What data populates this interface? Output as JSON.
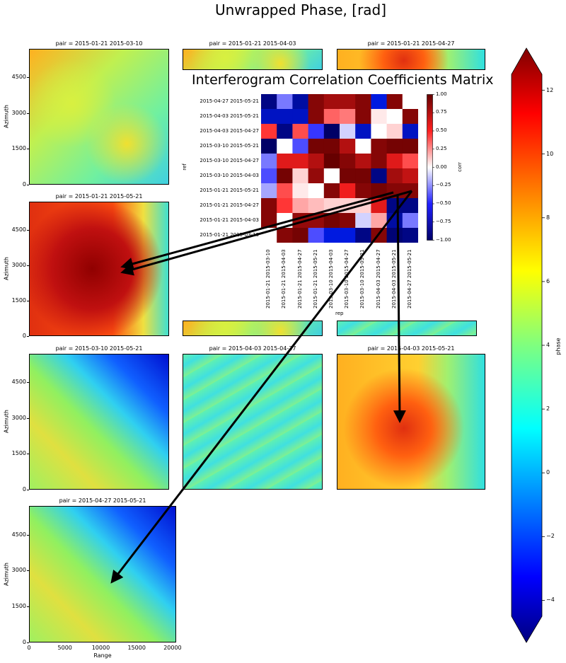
{
  "figure": {
    "title": "Unwrapped Phase, [rad]",
    "panels": [
      {
        "title": "pair = 2015-01-21 2015-03-10",
        "style": "green"
      },
      {
        "title": "pair = 2015-01-21 2015-04-03",
        "style": "green"
      },
      {
        "title": "pair = 2015-01-21 2015-04-27",
        "style": "orange"
      },
      {
        "title": "pair = 2015-01-21 2015-05-21",
        "style": "red"
      },
      {
        "title": "",
        "style": "green"
      },
      {
        "title": "",
        "style": "cyan"
      },
      {
        "title": "pair = 2015-03-10 2015-05-21",
        "style": "bluegreen"
      },
      {
        "title": "pair = 2015-04-03 2015-04-27",
        "style": "cyan"
      },
      {
        "title": "pair = 2015-04-03 2015-05-21",
        "style": "orange"
      },
      {
        "title": "pair = 2015-04-27 2015-05-21",
        "style": "bluegreen"
      }
    ],
    "y_label": "Azimuth",
    "x_label": "Range",
    "y_ticks": [
      "0",
      "1500",
      "3000",
      "4500"
    ],
    "x_ticks": [
      "0",
      "5000",
      "10000",
      "15000",
      "20000"
    ]
  },
  "colorbar": {
    "label": "phase",
    "ticks": [
      "12",
      "10",
      "8",
      "6",
      "4",
      "2",
      "0",
      "−2",
      "−4"
    ]
  },
  "matrix": {
    "title": "Interferogram Correlation Coefficients Matrix",
    "ylabel": "ref",
    "xlabel": "rep",
    "cbar_label": "corr",
    "cbar_ticks": [
      "1.00",
      "0.75",
      "0.50",
      "0.25",
      "0.00",
      "−0.25",
      "−0.50",
      "−0.75",
      "−1.00"
    ],
    "row_labels": [
      "2015-04-27 2015-05-21",
      "2015-04-03 2015-05-21",
      "2015-04-03 2015-04-27",
      "2015-03-10 2015-05-21",
      "2015-03-10 2015-04-27",
      "2015-03-10 2015-04-03",
      "2015-01-21 2015-05-21",
      "2015-01-21 2015-04-27",
      "2015-01-21 2015-04-03",
      "2015-01-21 2015-03-10"
    ],
    "col_labels": [
      "2015-01-21 2015-03-10",
      "2015-01-21 2015-04-03",
      "2015-01-21 2015-04-27",
      "2015-01-21 2015-05-21",
      "2015-03-10 2015-04-03",
      "2015-03-10 2015-04-27",
      "2015-03-10 2015-05-21",
      "2015-04-03 2015-04-27",
      "2015-04-03 2015-05-21",
      "2015-04-27 2015-05-21"
    ]
  },
  "chart_data": {
    "type": "heatmap",
    "title": "Interferogram Correlation Coefficients Matrix",
    "xlabel": "rep",
    "ylabel": "ref",
    "vmin": -1,
    "vmax": 1,
    "rows": [
      "2015-04-27 2015-05-21",
      "2015-04-03 2015-05-21",
      "2015-04-03 2015-04-27",
      "2015-03-10 2015-05-21",
      "2015-03-10 2015-04-27",
      "2015-03-10 2015-04-03",
      "2015-01-21 2015-05-21",
      "2015-01-21 2015-04-27",
      "2015-01-21 2015-04-03",
      "2015-01-21 2015-03-10"
    ],
    "cols": [
      "2015-01-21 2015-03-10",
      "2015-01-21 2015-04-03",
      "2015-01-21 2015-04-27",
      "2015-01-21 2015-05-21",
      "2015-03-10 2015-04-03",
      "2015-03-10 2015-04-27",
      "2015-03-10 2015-05-21",
      "2015-04-03 2015-04-27",
      "2015-04-03 2015-05-21",
      "2015-04-27 2015-05-21"
    ],
    "values": [
      [
        -0.9,
        -0.3,
        -0.8,
        0.9,
        0.8,
        0.8,
        0.9,
        -0.6,
        0.9,
        0.0
      ],
      [
        -0.7,
        -0.7,
        -0.7,
        0.9,
        0.35,
        0.3,
        0.9,
        0.05,
        0.0,
        0.9
      ],
      [
        0.45,
        -0.9,
        0.4,
        -0.45,
        -1.0,
        -0.1,
        -0.7,
        0.0,
        0.1,
        -0.7
      ],
      [
        -1.0,
        0.0,
        -0.4,
        0.95,
        0.95,
        0.75,
        0.0,
        0.9,
        0.95,
        0.95
      ],
      [
        -0.3,
        0.6,
        0.6,
        0.75,
        1.0,
        0.9,
        0.75,
        0.9,
        0.6,
        0.4
      ],
      [
        -0.4,
        0.95,
        0.1,
        0.85,
        0.0,
        0.95,
        0.95,
        -0.9,
        0.8,
        0.7
      ],
      [
        -0.2,
        0.4,
        0.05,
        0.0,
        0.9,
        0.55,
        0.9,
        0.95,
        0.9,
        0.9
      ],
      [
        0.9,
        0.45,
        0.2,
        0.15,
        0.1,
        0.1,
        0.1,
        0.6,
        -0.9,
        -0.9
      ],
      [
        0.9,
        0.0,
        0.85,
        0.85,
        0.95,
        0.9,
        -0.1,
        0.2,
        -0.8,
        -0.3
      ],
      [
        0.0,
        0.9,
        0.95,
        -0.4,
        -0.6,
        -0.6,
        -0.9,
        0.9,
        -0.95,
        -0.9
      ]
    ],
    "cbar_ticks": [
      1.0,
      0.75,
      0.5,
      0.25,
      0.0,
      -0.25,
      -0.5,
      -0.75,
      -1.0
    ],
    "secondary": {
      "type": "heatmap",
      "title": "Unwrapped Phase, [rad]",
      "colorbar_label": "phase",
      "colorbar_range": [
        -4.5,
        12.5
      ],
      "colorbar_ticks": [
        -4,
        -2,
        0,
        2,
        4,
        6,
        8,
        10,
        12
      ],
      "xlabel": "Range",
      "ylabel": "Azimuth",
      "xlim": [
        0,
        20500
      ],
      "ylim": [
        0,
        5700
      ]
    }
  }
}
